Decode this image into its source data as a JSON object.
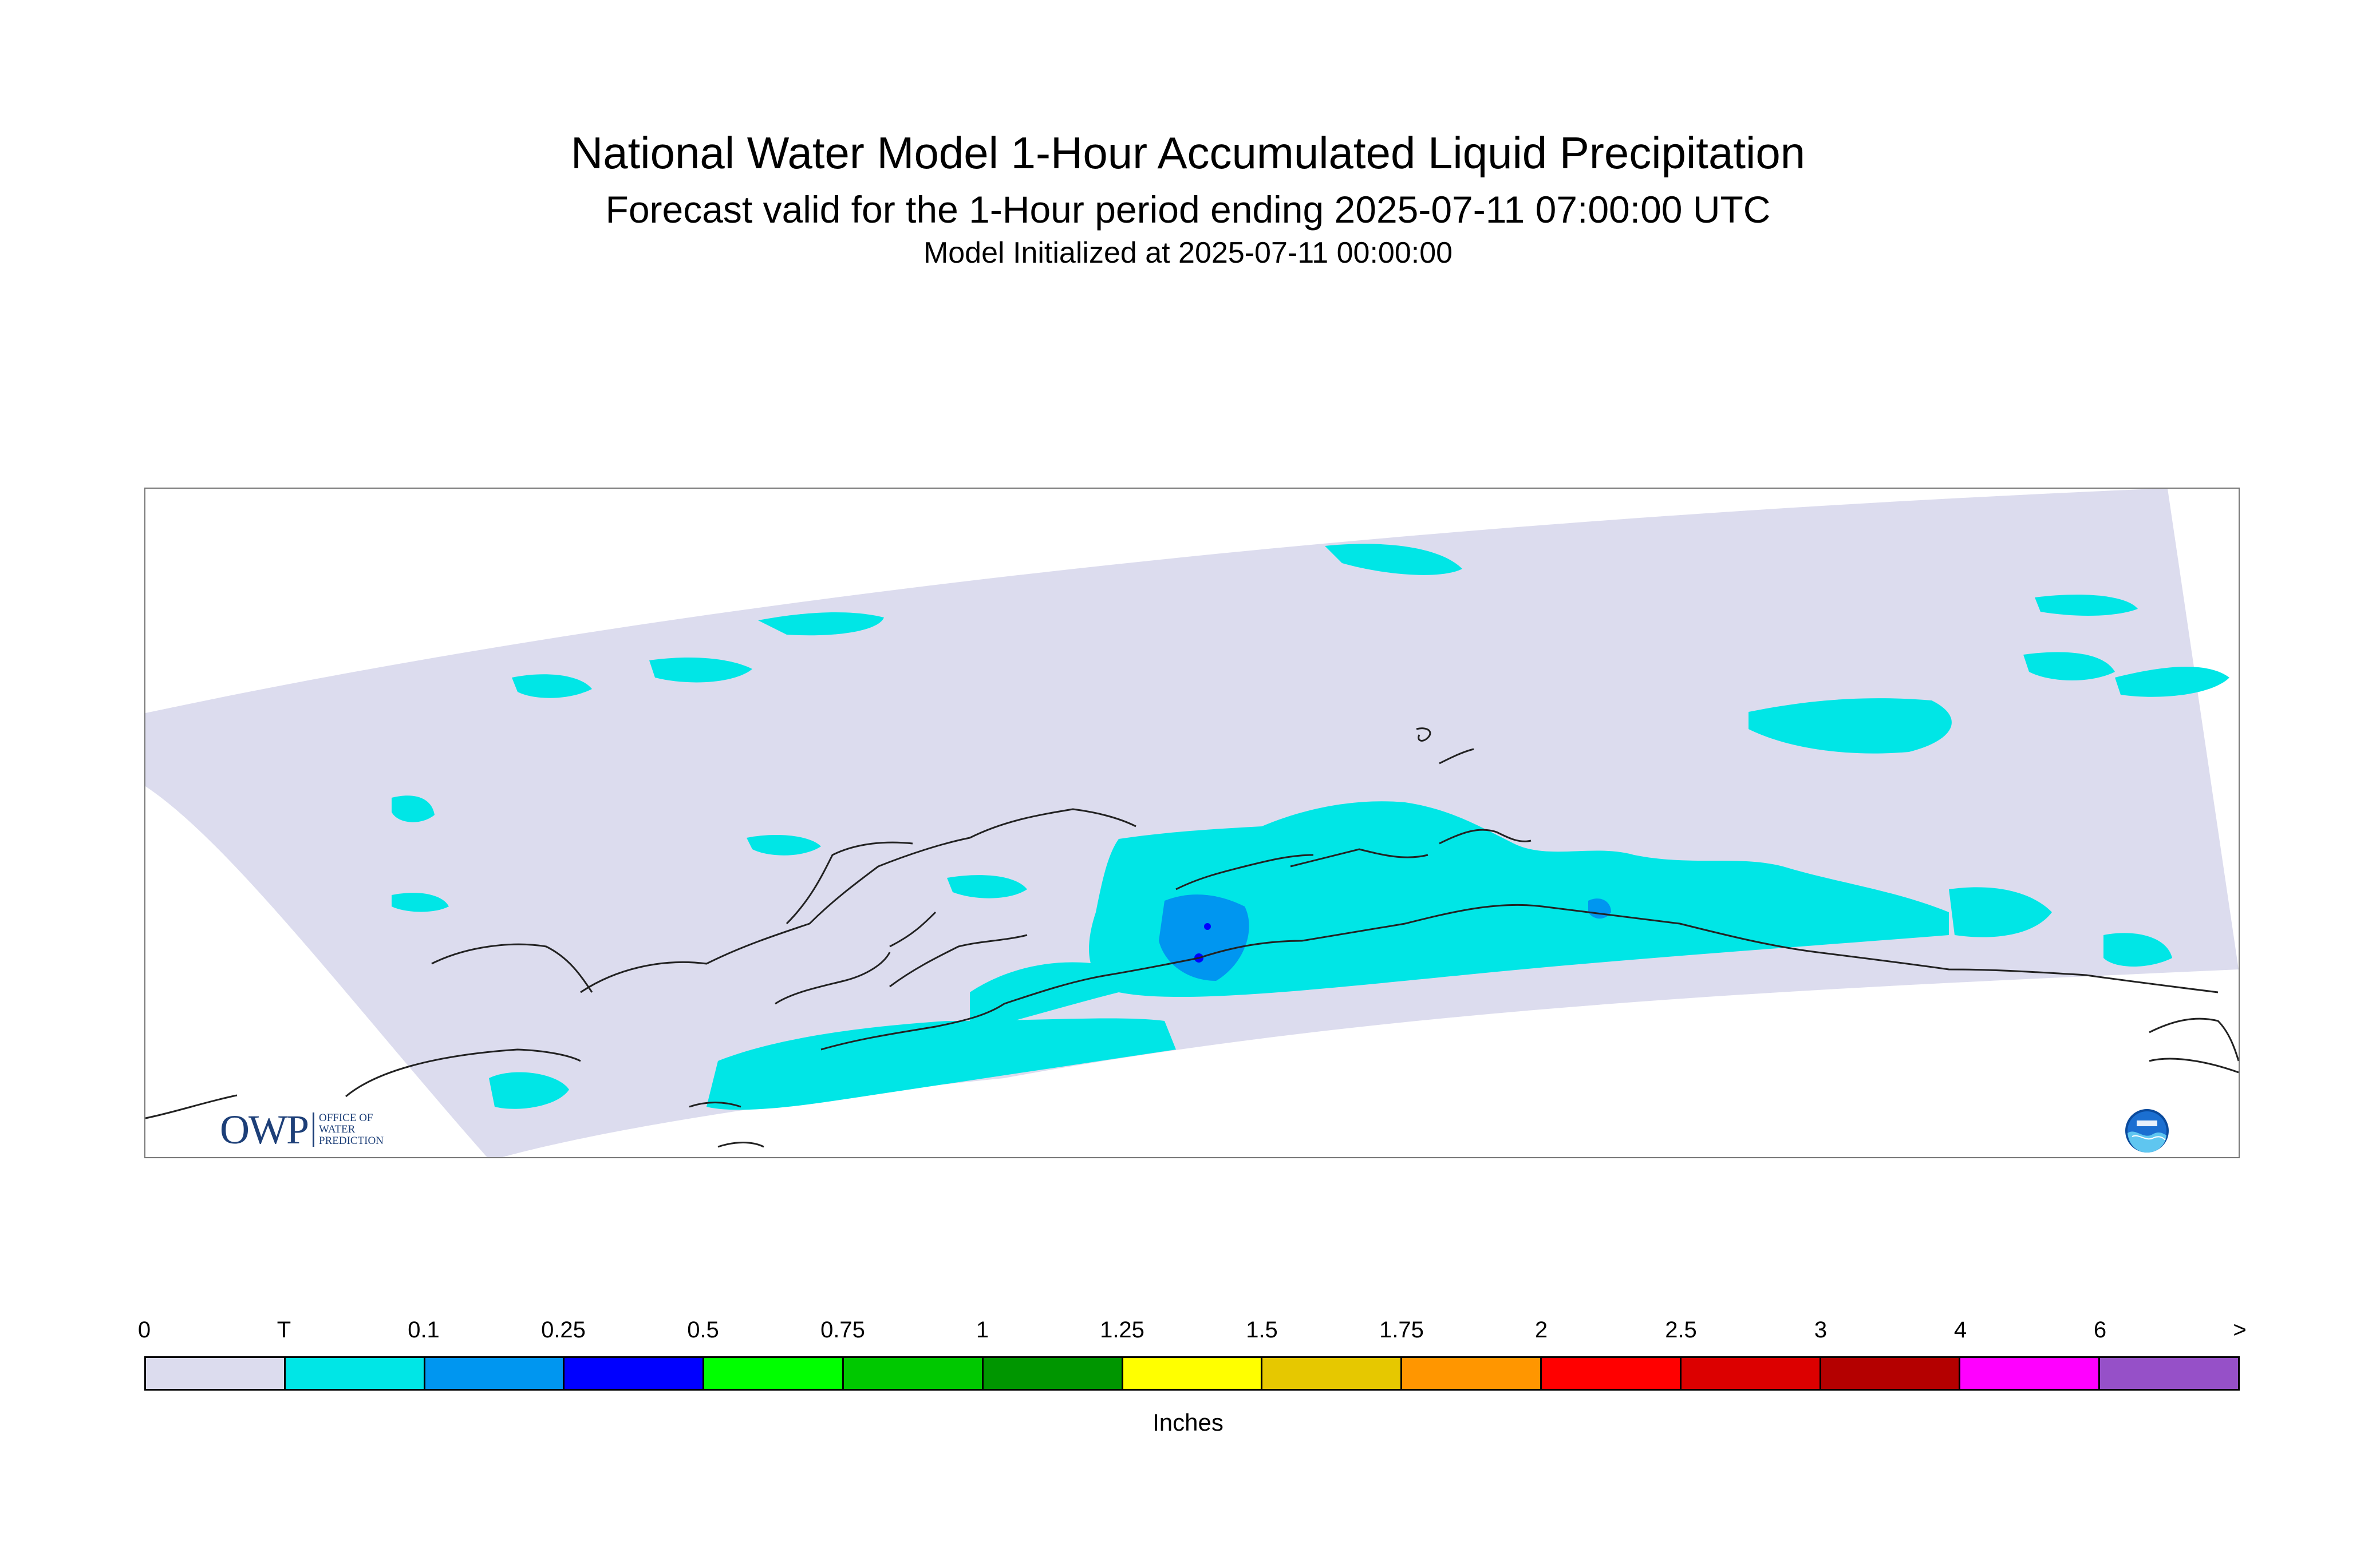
{
  "header": {
    "title": "National Water Model 1-Hour Accumulated Liquid Precipitation",
    "subtitle": "Forecast valid for the 1-Hour period ending 2025-07-11 07:00:00 UTC",
    "init": "Model Initialized at 2025-07-11 00:00:00"
  },
  "map": {
    "domain_color": "#dcdcee",
    "trace_color": "#00e6e6",
    "light_blue_color": "#0096f0",
    "dark_blue_color": "#0000ff",
    "coast_color": "#222222",
    "icons": [
      "owp-logo",
      "noaa-logo"
    ]
  },
  "logos": {
    "owp_mark": "OWP",
    "owp_text": [
      "OFFICE OF",
      "WATER",
      "PREDICTION"
    ]
  },
  "legend": {
    "labels": [
      "0",
      "T",
      "0.1",
      "0.25",
      "0.5",
      "0.75",
      "1",
      "1.25",
      "1.5",
      "1.75",
      "2",
      "2.5",
      "3",
      "4",
      "6",
      ">"
    ],
    "colors": [
      "#dcdcee",
      "#00e6e6",
      "#0096f0",
      "#0000ff",
      "#00ff00",
      "#00c800",
      "#009600",
      "#ffff00",
      "#e6c800",
      "#ff9600",
      "#ff0000",
      "#dc0000",
      "#b40000",
      "#ff00ff",
      "#9650c8"
    ],
    "units": "Inches"
  }
}
